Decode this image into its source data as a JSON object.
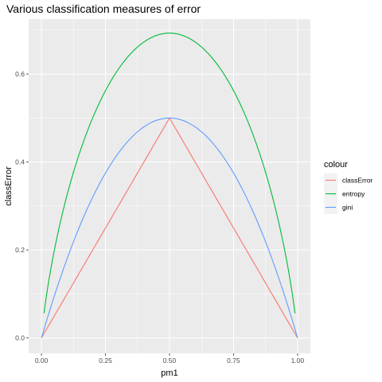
{
  "chart_data": {
    "type": "line",
    "title": "Various classification measures of error",
    "xlabel": "pm1",
    "ylabel": "classError",
    "xlim": [
      -0.05,
      1.05
    ],
    "ylim": [
      -0.035,
      0.725
    ],
    "x_ticks": [
      0.0,
      0.25,
      0.5,
      0.75,
      1.0
    ],
    "x_tick_labels": [
      "0.00",
      "0.25",
      "0.50",
      "0.75",
      "1.00"
    ],
    "y_ticks": [
      0.0,
      0.2,
      0.4,
      0.6
    ],
    "y_tick_labels": [
      "0.0",
      "0.2",
      "0.4",
      "0.6"
    ],
    "grid": true,
    "legend": {
      "title": "colour",
      "placement": "right"
    },
    "x": [
      0.0,
      0.01,
      0.05,
      0.1,
      0.15,
      0.2,
      0.25,
      0.3,
      0.35,
      0.4,
      0.45,
      0.5,
      0.55,
      0.6,
      0.65,
      0.7,
      0.75,
      0.8,
      0.85,
      0.9,
      0.95,
      0.99,
      1.0
    ],
    "series": [
      {
        "name": "classError",
        "color": "#F8766D",
        "values": [
          0.0,
          0.01,
          0.05,
          0.1,
          0.15,
          0.2,
          0.25,
          0.3,
          0.35,
          0.4,
          0.45,
          0.5,
          0.45,
          0.4,
          0.35,
          0.3,
          0.25,
          0.2,
          0.15,
          0.1,
          0.05,
          0.01,
          0.0
        ]
      },
      {
        "name": "entropy",
        "color": "#00BA38",
        "values": [
          null,
          0.056,
          0.199,
          0.325,
          0.423,
          0.5,
          0.562,
          0.611,
          0.647,
          0.673,
          0.688,
          0.693,
          0.688,
          0.673,
          0.647,
          0.611,
          0.562,
          0.5,
          0.423,
          0.325,
          0.199,
          0.056,
          null
        ]
      },
      {
        "name": "gini",
        "color": "#619CFF",
        "values": [
          0.0,
          0.0198,
          0.095,
          0.18,
          0.255,
          0.32,
          0.375,
          0.42,
          0.455,
          0.48,
          0.495,
          0.5,
          0.495,
          0.48,
          0.455,
          0.42,
          0.375,
          0.32,
          0.255,
          0.18,
          0.095,
          0.0198,
          0.0
        ]
      }
    ]
  }
}
